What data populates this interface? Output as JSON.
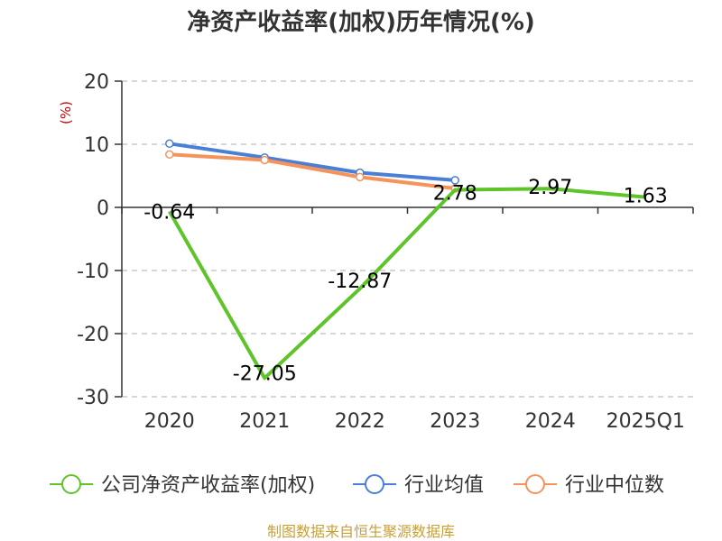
{
  "chart_data": {
    "type": "line",
    "title": "净资产收益率(加权)历年情况(%)",
    "ylabel": "(%)",
    "xlabel": "",
    "ylim": [
      -30,
      20
    ],
    "yticks": [
      20,
      10,
      0,
      -10,
      -20,
      -30
    ],
    "ytick_labels": [
      "20",
      "10",
      "0",
      "-10",
      "-20",
      "-30"
    ],
    "categories": [
      "2020",
      "2021",
      "2022",
      "2023",
      "2024",
      "2025Q1"
    ],
    "grid": "horizontal dashed",
    "legend_position": "bottom",
    "series": [
      {
        "name": "公司净资产收益率(加权)",
        "color": "#5ec42a",
        "values": [
          -0.64,
          -27.05,
          -12.87,
          2.78,
          2.97,
          1.63
        ],
        "labels": [
          "-0.64",
          "-27.05",
          "-12.87",
          "2.78",
          "2.97",
          "1.63"
        ]
      },
      {
        "name": "行业均值",
        "color": "#4a7fd6",
        "values": [
          10.1,
          7.9,
          5.5,
          4.3,
          null,
          null
        ]
      },
      {
        "name": "行业中位数",
        "color": "#f5935a",
        "values": [
          8.4,
          7.5,
          4.8,
          3.0,
          null,
          null
        ]
      }
    ],
    "source": "制图数据来自恒生聚源数据库"
  }
}
